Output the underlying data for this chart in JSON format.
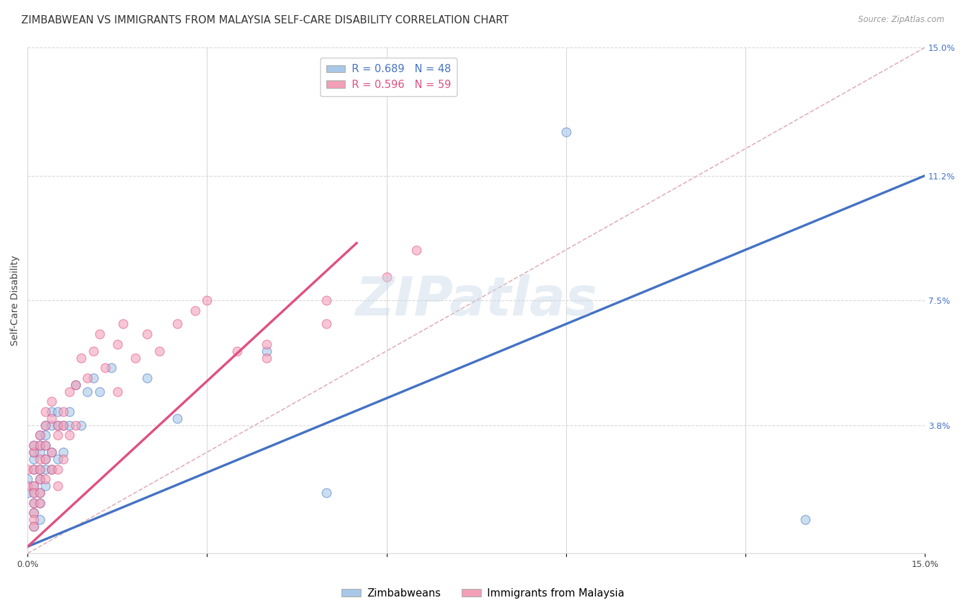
{
  "title": "ZIMBABWEAN VS IMMIGRANTS FROM MALAYSIA SELF-CARE DISABILITY CORRELATION CHART",
  "source": "Source: ZipAtlas.com",
  "ylabel": "Self-Care Disability",
  "xlim": [
    0,
    0.15
  ],
  "ylim": [
    0,
    0.15
  ],
  "ytick_labels_right": [
    "3.8%",
    "7.5%",
    "11.2%",
    "15.0%"
  ],
  "ytick_vals_right": [
    0.038,
    0.075,
    0.112,
    0.15
  ],
  "blue_R": "0.689",
  "blue_N": "48",
  "pink_R": "0.596",
  "pink_N": "59",
  "blue_color": "#a8c8e8",
  "pink_color": "#f4a0b8",
  "blue_line_color": "#4472c4",
  "pink_line_color": "#e05080",
  "diag_color": "#e0b0b8",
  "legend_label_blue": "Zimbabweans",
  "legend_label_pink": "Immigrants from Malaysia",
  "blue_line_x0": 0.0,
  "blue_line_y0": 0.002,
  "blue_line_x1": 0.15,
  "blue_line_y1": 0.112,
  "pink_line_x0": 0.0,
  "pink_line_y0": 0.002,
  "pink_line_x1": 0.055,
  "pink_line_y1": 0.092,
  "blue_scatter_x": [
    0.0,
    0.0,
    0.001,
    0.001,
    0.001,
    0.001,
    0.001,
    0.001,
    0.001,
    0.001,
    0.001,
    0.002,
    0.002,
    0.002,
    0.002,
    0.002,
    0.002,
    0.002,
    0.002,
    0.003,
    0.003,
    0.003,
    0.003,
    0.003,
    0.003,
    0.004,
    0.004,
    0.004,
    0.004,
    0.005,
    0.005,
    0.005,
    0.006,
    0.006,
    0.007,
    0.007,
    0.008,
    0.009,
    0.01,
    0.011,
    0.012,
    0.014,
    0.02,
    0.025,
    0.04,
    0.05,
    0.09,
    0.13
  ],
  "blue_scatter_y": [
    0.018,
    0.022,
    0.02,
    0.025,
    0.028,
    0.03,
    0.032,
    0.018,
    0.015,
    0.012,
    0.008,
    0.022,
    0.025,
    0.03,
    0.032,
    0.035,
    0.018,
    0.015,
    0.01,
    0.028,
    0.032,
    0.035,
    0.038,
    0.025,
    0.02,
    0.03,
    0.038,
    0.042,
    0.025,
    0.038,
    0.042,
    0.028,
    0.038,
    0.03,
    0.042,
    0.038,
    0.05,
    0.038,
    0.048,
    0.052,
    0.048,
    0.055,
    0.052,
    0.04,
    0.06,
    0.018,
    0.125,
    0.01
  ],
  "pink_scatter_x": [
    0.0,
    0.0,
    0.001,
    0.001,
    0.001,
    0.001,
    0.001,
    0.001,
    0.001,
    0.001,
    0.001,
    0.002,
    0.002,
    0.002,
    0.002,
    0.002,
    0.002,
    0.002,
    0.003,
    0.003,
    0.003,
    0.003,
    0.003,
    0.004,
    0.004,
    0.004,
    0.004,
    0.005,
    0.005,
    0.005,
    0.005,
    0.006,
    0.006,
    0.006,
    0.007,
    0.007,
    0.008,
    0.008,
    0.009,
    0.01,
    0.011,
    0.012,
    0.013,
    0.015,
    0.015,
    0.016,
    0.018,
    0.02,
    0.022,
    0.025,
    0.028,
    0.03,
    0.035,
    0.04,
    0.04,
    0.05,
    0.05,
    0.06,
    0.065
  ],
  "pink_scatter_y": [
    0.02,
    0.025,
    0.02,
    0.025,
    0.03,
    0.032,
    0.018,
    0.015,
    0.012,
    0.01,
    0.008,
    0.025,
    0.028,
    0.032,
    0.035,
    0.022,
    0.018,
    0.015,
    0.032,
    0.038,
    0.042,
    0.028,
    0.022,
    0.04,
    0.045,
    0.03,
    0.025,
    0.038,
    0.035,
    0.025,
    0.02,
    0.042,
    0.038,
    0.028,
    0.048,
    0.035,
    0.05,
    0.038,
    0.058,
    0.052,
    0.06,
    0.065,
    0.055,
    0.062,
    0.048,
    0.068,
    0.058,
    0.065,
    0.06,
    0.068,
    0.072,
    0.075,
    0.06,
    0.062,
    0.058,
    0.075,
    0.068,
    0.082,
    0.09
  ],
  "watermark_text": "ZIPatlas",
  "background_color": "#ffffff",
  "grid_color": "#d8d8d8",
  "title_fontsize": 11,
  "axis_label_fontsize": 10,
  "tick_fontsize": 9,
  "legend_fontsize": 11
}
